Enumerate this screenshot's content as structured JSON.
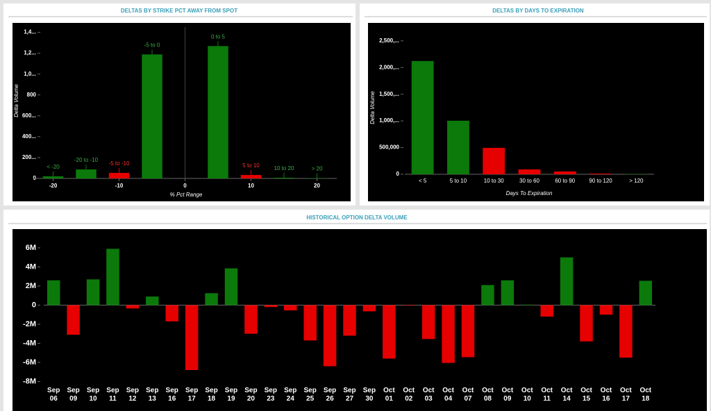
{
  "chart_data": [
    {
      "type": "bar",
      "title": "DELTAS BY STRIKE PCT AWAY FROM SPOT",
      "x_label": "% Pct Range",
      "y_label": "Delta Volume",
      "categories": [
        "< -20",
        "-20 to -10",
        "-5 to -10",
        "-5 to 0",
        "0 to 5",
        "5 to 10",
        "10 to 20",
        "> 20"
      ],
      "x": [
        -20,
        -15,
        -10,
        -5,
        5,
        10,
        15,
        20
      ],
      "values": [
        20000,
        86000,
        53000,
        1188000,
        1268000,
        33000,
        7000,
        3000
      ],
      "colors": [
        "#0b7a0b",
        "#0b7a0b",
        "#e60000",
        "#0b7a0b",
        "#0b7a0b",
        "#e60000",
        "#0b7a0b",
        "#0b7a0b"
      ],
      "xlim": [
        -23,
        23
      ],
      "xticks": [
        -20,
        -10,
        0,
        10,
        20
      ],
      "ylim": [
        0,
        1450000
      ],
      "yticks": [
        0,
        {
          "value": 200000,
          "label": "200..."
        },
        {
          "value": 400000,
          "label": "400..."
        },
        {
          "value": 600000,
          "label": "600..."
        },
        {
          "value": 800000,
          "label": "800"
        },
        {
          "value": 1000000,
          "label": "1,0..."
        },
        {
          "value": 1200000,
          "label": "1,2..."
        },
        {
          "value": 1400000,
          "label": "1,4..."
        }
      ]
    },
    {
      "type": "bar",
      "title": "DELTAS BY DAYS TO EXPIRATION",
      "x_label": "Days To Expiration",
      "y_label": "Delta Volume",
      "categories": [
        "< 5",
        "5 to 10",
        "10 to 30",
        "30 to 60",
        "60 to 90",
        "90 to 120",
        "> 120"
      ],
      "values": [
        2122000,
        1003000,
        495000,
        91000,
        52000,
        13000,
        5000
      ],
      "colors": [
        "#0b7a0b",
        "#0b7a0b",
        "#e60000",
        "#e60000",
        "#e60000",
        "#e60000",
        "#0b7a0b"
      ],
      "ylim": [
        0,
        2680000
      ],
      "yticks": [
        0,
        {
          "value": 500000,
          "label": "500,000"
        },
        {
          "value": 1000000,
          "label": "1,000,..."
        },
        {
          "value": 1500000,
          "label": "1,500,..."
        },
        {
          "value": 2000000,
          "label": "2,000,..."
        },
        {
          "value": 2500000,
          "label": "2,500,..."
        }
      ]
    },
    {
      "type": "bar",
      "title": "HISTORICAL OPTION DELTA VOLUME",
      "categories": [
        "Sep 06",
        "Sep 09",
        "Sep 10",
        "Sep 11",
        "Sep 12",
        "Sep 13",
        "Sep 16",
        "Sep 17",
        "Sep 18",
        "Sep 19",
        "Sep 20",
        "Sep 23",
        "Sep 24",
        "Sep 25",
        "Sep 26",
        "Sep 27",
        "Sep 30",
        "Oct 01",
        "Oct 02",
        "Oct 03",
        "Oct 04",
        "Oct 07",
        "Oct 08",
        "Oct 09",
        "Oct 10",
        "Oct 11",
        "Oct 14",
        "Oct 15",
        "Oct 16",
        "Oct 17",
        "Oct 18"
      ],
      "values": [
        2600000,
        -3100000,
        2700000,
        5900000,
        -350000,
        900000,
        -1700000,
        -6800000,
        1250000,
        3850000,
        -3000000,
        -200000,
        -550000,
        -3700000,
        -6400000,
        -3200000,
        -650000,
        -5600000,
        -50000,
        -3550000,
        -6050000,
        -5450000,
        2100000,
        2600000,
        50000,
        -1200000,
        5000000,
        -3800000,
        -1000000,
        -5500000,
        2550000
      ],
      "positive_color": "#0b7a0b",
      "negative_color": "#e60000",
      "ylim": [
        -8400000,
        7600000
      ],
      "yticks": [
        {
          "value": 6000000,
          "label": "6M"
        },
        {
          "value": 4000000,
          "label": "4M"
        },
        {
          "value": 2000000,
          "label": "2M"
        },
        0,
        {
          "value": -2000000,
          "label": "-2M"
        },
        {
          "value": -4000000,
          "label": "-4M"
        },
        {
          "value": -6000000,
          "label": "-6M"
        },
        {
          "value": -8000000,
          "label": "-8M"
        }
      ]
    }
  ]
}
